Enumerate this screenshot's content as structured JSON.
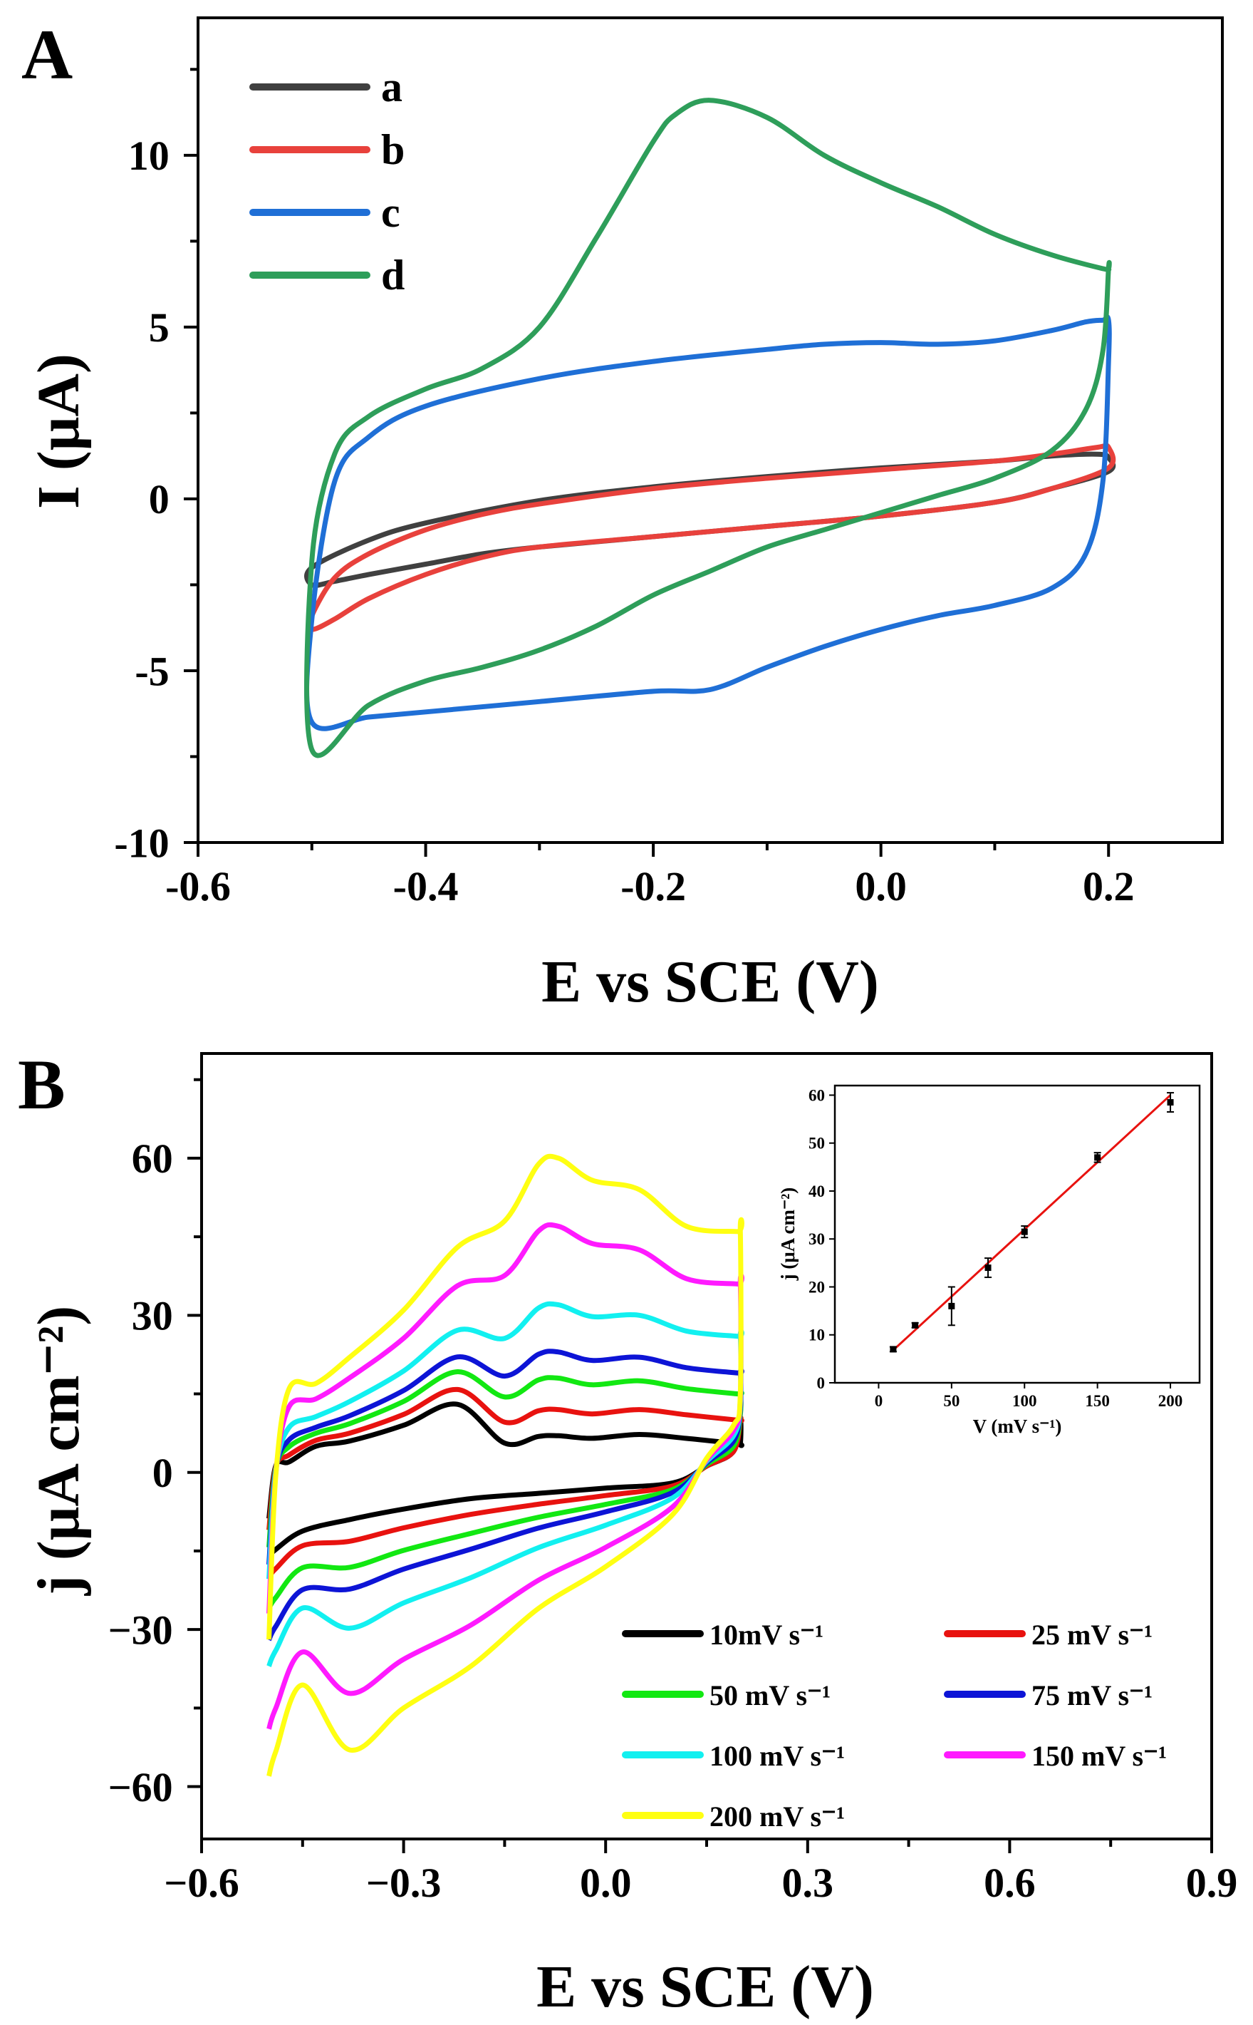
{
  "chart_data": [
    {
      "panel_label": "A",
      "type": "line",
      "xlabel": "E vs SCE (V)",
      "ylabel": "I (μA)",
      "xlim": [
        -0.6,
        0.3
      ],
      "ylim": [
        -10,
        14
      ],
      "xticks": [
        -0.6,
        -0.4,
        -0.2,
        0.0,
        0.2
      ],
      "xtick_labels": [
        "-0.6",
        "-0.4",
        "-0.2",
        "0.0",
        "0.2"
      ],
      "yticks": [
        -10,
        -5,
        0,
        5,
        10
      ],
      "ytick_labels": [
        "-10",
        "-5",
        "0",
        "5",
        "10"
      ],
      "legend_position": "top-left",
      "series": [
        {
          "name": "a",
          "color": "#404040",
          "closed": true,
          "x": [
            -0.5,
            -0.48,
            -0.45,
            -0.4,
            -0.35,
            -0.3,
            -0.2,
            -0.1,
            0.0,
            0.1,
            0.15,
            0.2,
            0.2,
            0.19,
            0.15,
            0.1,
            0.0,
            -0.1,
            -0.2,
            -0.3,
            -0.4,
            -0.45,
            -0.5
          ],
          "y": [
            -2.5,
            -2.4,
            -2.2,
            -1.9,
            -1.6,
            -1.4,
            -1.1,
            -0.8,
            -0.5,
            -0.1,
            0.3,
            0.8,
            1.2,
            1.3,
            1.25,
            1.1,
            0.9,
            0.65,
            0.35,
            -0.05,
            -0.7,
            -1.2,
            -2.0
          ]
        },
        {
          "name": "b",
          "color": "#e8413c",
          "closed": true,
          "x": [
            -0.5,
            -0.48,
            -0.45,
            -0.4,
            -0.35,
            -0.3,
            -0.2,
            -0.1,
            0.0,
            0.1,
            0.15,
            0.2,
            0.2,
            0.19,
            0.15,
            0.1,
            0.0,
            -0.1,
            -0.2,
            -0.3,
            -0.35,
            -0.4,
            -0.45,
            -0.48,
            -0.5
          ],
          "y": [
            -3.8,
            -3.5,
            -2.9,
            -2.2,
            -1.7,
            -1.4,
            -1.1,
            -0.8,
            -0.5,
            -0.1,
            0.3,
            0.9,
            1.5,
            1.5,
            1.3,
            1.1,
            0.85,
            0.6,
            0.3,
            -0.15,
            -0.45,
            -0.9,
            -1.6,
            -2.3,
            -3.4
          ]
        },
        {
          "name": "c",
          "color": "#1f6fd6",
          "closed": true,
          "x": [
            -0.5,
            -0.45,
            -0.4,
            -0.3,
            -0.2,
            -0.15,
            -0.1,
            -0.05,
            0.0,
            0.05,
            0.1,
            0.15,
            0.18,
            0.195,
            0.2,
            0.2,
            0.195,
            0.18,
            0.15,
            0.1,
            0.05,
            0.0,
            -0.05,
            -0.1,
            -0.2,
            -0.3,
            -0.4,
            -0.45,
            -0.48,
            -0.5
          ],
          "y": [
            -6.5,
            -6.35,
            -6.2,
            -5.9,
            -5.6,
            -5.55,
            -4.9,
            -4.3,
            -3.8,
            -3.4,
            -3.1,
            -2.6,
            -1.6,
            0.5,
            4.0,
            5.2,
            5.2,
            5.15,
            4.9,
            4.6,
            4.5,
            4.55,
            4.5,
            4.35,
            4.0,
            3.5,
            2.7,
            1.8,
            0.5,
            -3.5
          ]
        },
        {
          "name": "d",
          "color": "#2e9e5a",
          "closed": true,
          "x": [
            -0.5,
            -0.45,
            -0.4,
            -0.35,
            -0.3,
            -0.25,
            -0.2,
            -0.15,
            -0.1,
            -0.05,
            0.0,
            0.05,
            0.1,
            0.15,
            0.18,
            0.195,
            0.2,
            0.2,
            0.195,
            0.15,
            0.1,
            0.05,
            0.0,
            -0.05,
            -0.1,
            -0.15,
            -0.18,
            -0.2,
            -0.25,
            -0.3,
            -0.35,
            -0.4,
            -0.45,
            -0.48,
            -0.5
          ],
          "y": [
            -7.3,
            -6.0,
            -5.3,
            -4.9,
            -4.4,
            -3.7,
            -2.8,
            -2.1,
            -1.4,
            -0.9,
            -0.4,
            0.1,
            0.6,
            1.4,
            2.6,
            4.3,
            6.7,
            6.7,
            6.7,
            7.1,
            7.7,
            8.5,
            9.2,
            10.0,
            11.1,
            11.6,
            11.2,
            10.4,
            7.6,
            5.0,
            3.8,
            3.2,
            2.4,
            1.3,
            -1.8
          ]
        }
      ]
    },
    {
      "panel_label": "B",
      "type": "line",
      "xlabel": "E vs SCE (V)",
      "ylabel": "j (μA cm⁻²)",
      "xlim": [
        -0.6,
        0.9
      ],
      "ylim": [
        -70,
        80
      ],
      "xticks": [
        -0.6,
        -0.3,
        0.0,
        0.3,
        0.6,
        0.9
      ],
      "xtick_labels": [
        "−0.6",
        "−0.3",
        "0.0",
        "0.3",
        "0.6",
        "0.9"
      ],
      "yticks": [
        -60,
        -30,
        0,
        30,
        60
      ],
      "ytick_labels": [
        "−60",
        "−30",
        "0",
        "30",
        "60"
      ],
      "legend_position": "bottom-right",
      "series": [
        {
          "name": "10mV s⁻¹",
          "color": "#000000",
          "peak_anodic": 7,
          "upper_end": 5.5,
          "lower_start": -16,
          "lower_end": 4
        },
        {
          "name": "25 mV s⁻¹",
          "color": "#e8120f",
          "peak_anodic": 12,
          "upper_end": 10,
          "lower_start": -20,
          "lower_end": 4
        },
        {
          "name": "50 mV s⁻¹",
          "color": "#12e812",
          "peak_anodic": 18,
          "upper_end": 15,
          "lower_start": -26,
          "lower_end": 5
        },
        {
          "name": "75 mV s⁻¹",
          "color": "#0d14d6",
          "peak_anodic": 23,
          "upper_end": 19,
          "lower_start": -32,
          "lower_end": 6
        },
        {
          "name": "100 mV s⁻¹",
          "color": "#12f0f0",
          "peak_anodic": 32,
          "upper_end": 26,
          "lower_start": -37,
          "lower_end": 7
        },
        {
          "name": "150 mV s⁻¹",
          "color": "#ff1aff",
          "peak_anodic": 47,
          "upper_end": 36,
          "lower_start": -49,
          "lower_end": 8
        },
        {
          "name": "200 mV s⁻¹",
          "color": "#ffff12",
          "peak_anodic": 60,
          "upper_end": 46,
          "lower_start": -58,
          "lower_end": 9
        }
      ],
      "inset": {
        "type": "scatter",
        "xlabel": "V (mV s⁻¹)",
        "ylabel": "j (μA cm⁻²)",
        "xlim": [
          -30,
          220
        ],
        "ylim": [
          0,
          62
        ],
        "xticks": [
          0,
          50,
          100,
          150,
          200
        ],
        "xtick_labels": [
          "0",
          "50",
          "100",
          "150",
          "200"
        ],
        "yticks": [
          0,
          10,
          20,
          30,
          40,
          50,
          60
        ],
        "ytick_labels": [
          "0",
          "10",
          "20",
          "30",
          "40",
          "50",
          "60"
        ],
        "x": [
          10,
          25,
          50,
          75,
          100,
          150,
          200
        ],
        "y": [
          7,
          12,
          16,
          24,
          31.5,
          47,
          58.5
        ],
        "err": [
          0.5,
          0.5,
          4,
          2,
          1.2,
          1,
          2
        ],
        "fit": {
          "color": "#e8120f",
          "x": [
            10,
            200
          ],
          "y": [
            6.8,
            60
          ]
        }
      }
    }
  ]
}
